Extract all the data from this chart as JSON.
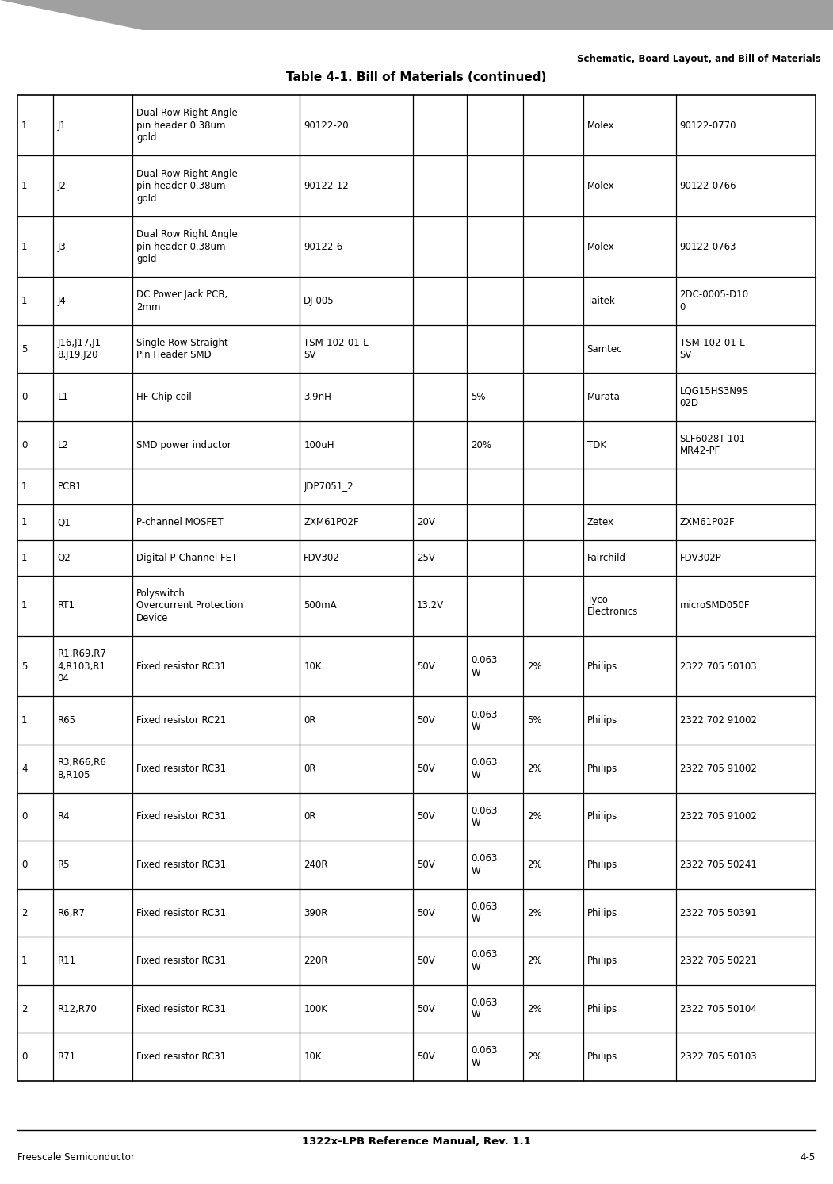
{
  "page_title": "Schematic, Board Layout, and Bill of Materials",
  "table_title": "Table 4-1. Bill of Materials (continued)",
  "footer_center": "1322x-LPB Reference Manual, Rev. 1.1",
  "footer_left": "Freescale Semiconductor",
  "footer_right": "4-5",
  "rows": [
    [
      "1",
      "J1",
      "Dual Row Right Angle\npin header 0.38um\ngold",
      "90122-20",
      "",
      "",
      "",
      "Molex",
      "90122-0770"
    ],
    [
      "1",
      "J2",
      "Dual Row Right Angle\npin header 0.38um\ngold",
      "90122-12",
      "",
      "",
      "",
      "Molex",
      "90122-0766"
    ],
    [
      "1",
      "J3",
      "Dual Row Right Angle\npin header 0.38um\ngold",
      "90122-6",
      "",
      "",
      "",
      "Molex",
      "90122-0763"
    ],
    [
      "1",
      "J4",
      "DC Power Jack PCB,\n2mm",
      "DJ-005",
      "",
      "",
      "",
      "Taitek",
      "2DC-0005-D10\n0"
    ],
    [
      "5",
      "J16,J17,J1\n8,J19,J20",
      "Single Row Straight\nPin Header SMD",
      "TSM-102-01-L-\nSV",
      "",
      "",
      "",
      "Samtec",
      "TSM-102-01-L-\nSV"
    ],
    [
      "0",
      "L1",
      "HF Chip coil",
      "3.9nH",
      "",
      "5%",
      "",
      "Murata",
      "LQG15HS3N9S\n02D"
    ],
    [
      "0",
      "L2",
      "SMD power inductor",
      "100uH",
      "",
      "20%",
      "",
      "TDK",
      "SLF6028T-101\nMR42-PF"
    ],
    [
      "1",
      "PCB1",
      "",
      "JDP7051_2",
      "",
      "",
      "",
      "",
      ""
    ],
    [
      "1",
      "Q1",
      "P-channel MOSFET",
      "ZXM61P02F",
      "20V",
      "",
      "",
      "Zetex",
      "ZXM61P02F"
    ],
    [
      "1",
      "Q2",
      "Digital P-Channel FET",
      "FDV302",
      "25V",
      "",
      "",
      "Fairchild",
      "FDV302P"
    ],
    [
      "1",
      "RT1",
      "Polyswitch\nOvercurrent Protection\nDevice",
      "500mA",
      "13.2V",
      "",
      "",
      "Tyco\nElectronics",
      "microSMD050F"
    ],
    [
      "5",
      "R1,R69,R7\n4,R103,R1\n04",
      "Fixed resistor RC31",
      "10K",
      "50V",
      "0.063\nW",
      "2%",
      "Philips",
      "2322 705 50103"
    ],
    [
      "1",
      "R65",
      "Fixed resistor RC21",
      "0R",
      "50V",
      "0.063\nW",
      "5%",
      "Philips",
      "2322 702 91002"
    ],
    [
      "4",
      "R3,R66,R6\n8,R105",
      "Fixed resistor RC31",
      "0R",
      "50V",
      "0.063\nW",
      "2%",
      "Philips",
      "2322 705 91002"
    ],
    [
      "0",
      "R4",
      "Fixed resistor RC31",
      "0R",
      "50V",
      "0.063\nW",
      "2%",
      "Philips",
      "2322 705 91002"
    ],
    [
      "0",
      "R5",
      "Fixed resistor RC31",
      "240R",
      "50V",
      "0.063\nW",
      "2%",
      "Philips",
      "2322 705 50241"
    ],
    [
      "2",
      "R6,R7",
      "Fixed resistor RC31",
      "390R",
      "50V",
      "0.063\nW",
      "2%",
      "Philips",
      "2322 705 50391"
    ],
    [
      "1",
      "R11",
      "Fixed resistor RC31",
      "220R",
      "50V",
      "0.063\nW",
      "2%",
      "Philips",
      "2322 705 50221"
    ],
    [
      "2",
      "R12,R70",
      "Fixed resistor RC31",
      "100K",
      "50V",
      "0.063\nW",
      "2%",
      "Philips",
      "2322 705 50104"
    ],
    [
      "0",
      "R71",
      "Fixed resistor RC31",
      "10K",
      "50V",
      "0.063\nW",
      "2%",
      "Philips",
      "2322 705 50103"
    ]
  ],
  "col_rel": [
    0.042,
    0.092,
    0.195,
    0.132,
    0.063,
    0.065,
    0.07,
    0.108,
    0.163
  ],
  "row_line_counts": [
    3,
    3,
    3,
    2,
    2,
    2,
    2,
    1,
    1,
    1,
    3,
    3,
    2,
    2,
    2,
    2,
    2,
    2,
    2,
    2
  ],
  "bg_color": "#ffffff",
  "gray_bar_color": "#a0a0a0",
  "line_color": "#000000",
  "text_color": "#000000"
}
